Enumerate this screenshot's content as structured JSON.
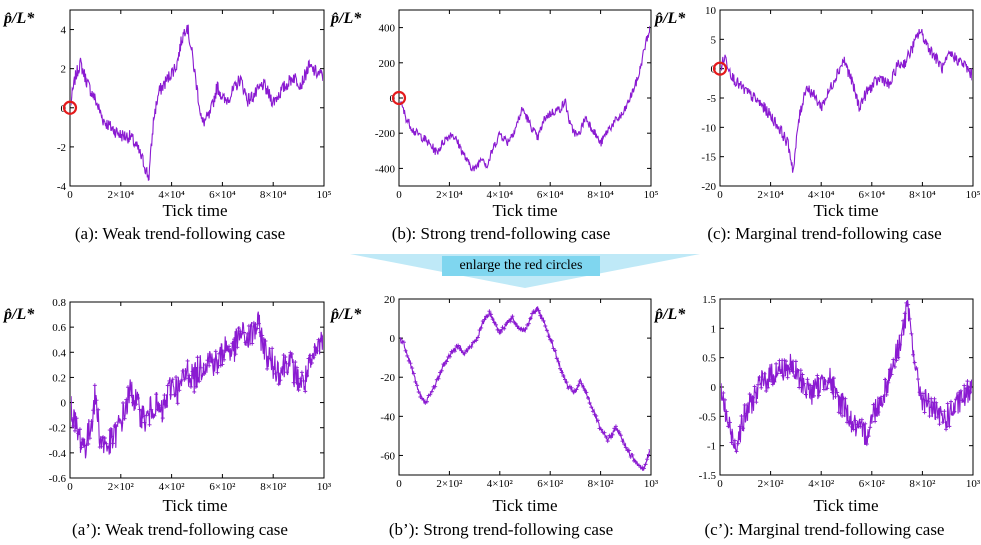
{
  "banner": {
    "text": "enlarge the red circles",
    "color": "#7fd6ef"
  },
  "series_color": "#8a1ad1",
  "marker_color": "#e31a1c",
  "chart_data": [
    {
      "id": "a",
      "type": "line",
      "caption": "(a): Weak trend-following case",
      "xlabel": "Tick time",
      "ylabel": "p̂/L*",
      "xlim": [
        0,
        100000
      ],
      "ylim": [
        -4,
        5
      ],
      "yticks": [
        -4,
        -2,
        0,
        2,
        4
      ],
      "xticks": [
        0,
        20000,
        40000,
        60000,
        80000,
        100000
      ],
      "xtick_labels": [
        "0",
        "2×10⁴",
        "4×10⁴",
        "6×10⁴",
        "8×10⁴",
        "10⁵"
      ],
      "series_points": [
        [
          0,
          0
        ],
        [
          2000,
          1.5
        ],
        [
          4000,
          2.3
        ],
        [
          7000,
          1.2
        ],
        [
          10000,
          0.4
        ],
        [
          13000,
          -0.6
        ],
        [
          16000,
          -1.0
        ],
        [
          20000,
          -1.4
        ],
        [
          24000,
          -1.5
        ],
        [
          27000,
          -2.2
        ],
        [
          29000,
          -2.8
        ],
        [
          31000,
          -3.6
        ],
        [
          33000,
          -0.5
        ],
        [
          35000,
          0.8
        ],
        [
          37000,
          1.2
        ],
        [
          39000,
          1.6
        ],
        [
          42000,
          2.2
        ],
        [
          44000,
          3.5
        ],
        [
          46000,
          4.3
        ],
        [
          48000,
          2.8
        ],
        [
          50000,
          1.0
        ],
        [
          52000,
          -0.8
        ],
        [
          55000,
          -0.4
        ],
        [
          58000,
          1.1
        ],
        [
          61000,
          0.3
        ],
        [
          64000,
          0.8
        ],
        [
          67000,
          1.5
        ],
        [
          70000,
          0.4
        ],
        [
          73000,
          0.7
        ],
        [
          76000,
          1.2
        ],
        [
          80000,
          0.3
        ],
        [
          84000,
          1.0
        ],
        [
          88000,
          1.6
        ],
        [
          91000,
          1.2
        ],
        [
          94000,
          2.1
        ],
        [
          97000,
          1.8
        ],
        [
          100000,
          1.6
        ]
      ],
      "noise_amplitude": 0.35,
      "marker": {
        "x": 0,
        "y": 0
      }
    },
    {
      "id": "b",
      "type": "line",
      "caption": "(b): Strong trend-following case",
      "xlabel": "Tick time",
      "ylabel": "p̂/L*",
      "xlim": [
        0,
        100000
      ],
      "ylim": [
        -500,
        500
      ],
      "yticks": [
        -400,
        -200,
        0,
        200,
        400
      ],
      "xticks": [
        0,
        20000,
        40000,
        60000,
        80000,
        100000
      ],
      "xtick_labels": [
        "0",
        "2×10⁴",
        "4×10⁴",
        "6×10⁴",
        "8×10⁴",
        "10⁵"
      ],
      "series_points": [
        [
          0,
          0
        ],
        [
          3000,
          -120
        ],
        [
          6000,
          -190
        ],
        [
          9000,
          -220
        ],
        [
          12000,
          -260
        ],
        [
          15000,
          -310
        ],
        [
          18000,
          -240
        ],
        [
          21000,
          -200
        ],
        [
          24000,
          -270
        ],
        [
          27000,
          -360
        ],
        [
          30000,
          -410
        ],
        [
          33000,
          -330
        ],
        [
          35000,
          -390
        ],
        [
          37000,
          -300
        ],
        [
          40000,
          -200
        ],
        [
          43000,
          -250
        ],
        [
          46000,
          -180
        ],
        [
          49000,
          -60
        ],
        [
          52000,
          -150
        ],
        [
          55000,
          -230
        ],
        [
          58000,
          -110
        ],
        [
          61000,
          -80
        ],
        [
          64000,
          -60
        ],
        [
          66000,
          -20
        ],
        [
          68000,
          -160
        ],
        [
          71000,
          -220
        ],
        [
          74000,
          -110
        ],
        [
          77000,
          -180
        ],
        [
          80000,
          -260
        ],
        [
          83000,
          -180
        ],
        [
          86000,
          -130
        ],
        [
          89000,
          -90
        ],
        [
          92000,
          10
        ],
        [
          95000,
          120
        ],
        [
          98000,
          320
        ],
        [
          100000,
          410
        ]
      ],
      "noise_amplitude": 25,
      "marker": {
        "x": 0,
        "y": 0
      }
    },
    {
      "id": "c",
      "type": "line",
      "caption": "(c): Marginal trend-following case",
      "xlabel": "Tick time",
      "ylabel": "p̂/L*",
      "xlim": [
        0,
        100000
      ],
      "ylim": [
        -20,
        10
      ],
      "yticks": [
        -20,
        -15,
        -10,
        -5,
        0,
        5,
        10
      ],
      "xticks": [
        0,
        20000,
        40000,
        60000,
        80000,
        100000
      ],
      "xtick_labels": [
        "0",
        "2×10⁴",
        "4×10⁴",
        "6×10⁴",
        "8×10⁴",
        "10⁵"
      ],
      "series_points": [
        [
          0,
          0
        ],
        [
          2000,
          2.0
        ],
        [
          5000,
          -1.5
        ],
        [
          8000,
          -3.0
        ],
        [
          12000,
          -4.5
        ],
        [
          16000,
          -6.0
        ],
        [
          20000,
          -8.0
        ],
        [
          24000,
          -10.5
        ],
        [
          27000,
          -13.0
        ],
        [
          29000,
          -17.5
        ],
        [
          31000,
          -9.0
        ],
        [
          34000,
          -3.0
        ],
        [
          37000,
          -4.5
        ],
        [
          40000,
          -6.5
        ],
        [
          43000,
          -4.0
        ],
        [
          46000,
          -1.0
        ],
        [
          49000,
          1.5
        ],
        [
          52000,
          -2.0
        ],
        [
          55000,
          -6.5
        ],
        [
          58000,
          -4.0
        ],
        [
          61000,
          -2.5
        ],
        [
          64000,
          -1.5
        ],
        [
          67000,
          -3.0
        ],
        [
          70000,
          0.5
        ],
        [
          73000,
          1.0
        ],
        [
          76000,
          3.5
        ],
        [
          79000,
          6.5
        ],
        [
          82000,
          4.0
        ],
        [
          85000,
          2.0
        ],
        [
          88000,
          0.0
        ],
        [
          91000,
          2.5
        ],
        [
          94000,
          1.5
        ],
        [
          97000,
          0.5
        ],
        [
          100000,
          -1.5
        ]
      ],
      "noise_amplitude": 1.0,
      "marker": {
        "x": 0,
        "y": 0
      }
    },
    {
      "id": "a2",
      "type": "line",
      "caption": "(a’): Weak trend-following case",
      "xlabel": "Tick time",
      "ylabel": "p̂/L*",
      "xlim": [
        0,
        1000
      ],
      "ylim": [
        -0.6,
        0.8
      ],
      "yticks": [
        -0.6,
        -0.4,
        -0.2,
        0,
        0.2,
        0.4,
        0.6,
        0.8
      ],
      "xticks": [
        0,
        200,
        400,
        600,
        800,
        1000
      ],
      "xtick_labels": [
        "0",
        "2×10²",
        "4×10²",
        "6×10²",
        "8×10²",
        "10³"
      ],
      "series_points": [
        [
          0,
          0
        ],
        [
          30,
          -0.25
        ],
        [
          60,
          -0.35
        ],
        [
          80,
          -0.2
        ],
        [
          100,
          0.05
        ],
        [
          120,
          -0.3
        ],
        [
          150,
          -0.35
        ],
        [
          180,
          -0.25
        ],
        [
          210,
          -0.1
        ],
        [
          240,
          0.1
        ],
        [
          270,
          -0.05
        ],
        [
          300,
          -0.15
        ],
        [
          330,
          0.0
        ],
        [
          360,
          -0.1
        ],
        [
          400,
          0.15
        ],
        [
          430,
          0.1
        ],
        [
          460,
          0.25
        ],
        [
          490,
          0.2
        ],
        [
          520,
          0.3
        ],
        [
          550,
          0.35
        ],
        [
          580,
          0.3
        ],
        [
          610,
          0.45
        ],
        [
          640,
          0.4
        ],
        [
          670,
          0.55
        ],
        [
          700,
          0.5
        ],
        [
          740,
          0.62
        ],
        [
          770,
          0.4
        ],
        [
          800,
          0.3
        ],
        [
          830,
          0.25
        ],
        [
          860,
          0.35
        ],
        [
          890,
          0.2
        ],
        [
          920,
          0.15
        ],
        [
          950,
          0.3
        ],
        [
          980,
          0.45
        ],
        [
          1000,
          0.55
        ]
      ],
      "noise_amplitude": 0.12,
      "markers_on_points": true
    },
    {
      "id": "b2",
      "type": "line",
      "caption": "(b’): Strong trend-following case",
      "xlabel": "Tick time",
      "ylabel": "p̂/L*",
      "xlim": [
        0,
        1000
      ],
      "ylim": [
        -70,
        20
      ],
      "yticks": [
        -60,
        -40,
        -20,
        0,
        20
      ],
      "xticks": [
        0,
        200,
        400,
        600,
        800,
        1000
      ],
      "xtick_labels": [
        "0",
        "2×10²",
        "4×10²",
        "6×10²",
        "8×10²",
        "10³"
      ],
      "series_points": [
        [
          0,
          0
        ],
        [
          20,
          -3
        ],
        [
          50,
          -15
        ],
        [
          80,
          -28
        ],
        [
          100,
          -33
        ],
        [
          120,
          -30
        ],
        [
          150,
          -22
        ],
        [
          180,
          -13
        ],
        [
          210,
          -7
        ],
        [
          240,
          -4
        ],
        [
          260,
          -8
        ],
        [
          280,
          -5
        ],
        [
          310,
          0
        ],
        [
          340,
          10
        ],
        [
          360,
          13
        ],
        [
          380,
          8
        ],
        [
          400,
          3
        ],
        [
          430,
          8
        ],
        [
          450,
          10
        ],
        [
          470,
          6
        ],
        [
          500,
          4
        ],
        [
          530,
          12
        ],
        [
          550,
          15
        ],
        [
          570,
          10
        ],
        [
          600,
          0
        ],
        [
          640,
          -15
        ],
        [
          670,
          -25
        ],
        [
          700,
          -28
        ],
        [
          720,
          -22
        ],
        [
          750,
          -30
        ],
        [
          780,
          -40
        ],
        [
          800,
          -47
        ],
        [
          830,
          -52
        ],
        [
          860,
          -46
        ],
        [
          880,
          -50
        ],
        [
          910,
          -58
        ],
        [
          940,
          -63
        ],
        [
          970,
          -67
        ],
        [
          990,
          -60
        ],
        [
          1000,
          -57
        ]
      ],
      "noise_amplitude": 1.2,
      "markers_on_points": true
    },
    {
      "id": "c2",
      "type": "line",
      "caption": "(c’): Marginal trend-following case",
      "xlabel": "Tick time",
      "ylabel": "p̂/L*",
      "xlim": [
        0,
        1000
      ],
      "ylim": [
        -1.5,
        1.5
      ],
      "yticks": [
        -1.5,
        -1,
        -0.5,
        0,
        0.5,
        1,
        1.5
      ],
      "xticks": [
        0,
        200,
        400,
        600,
        800,
        1000
      ],
      "xtick_labels": [
        "0",
        "2×10²",
        "4×10²",
        "6×10²",
        "8×10²",
        "10³"
      ],
      "series_points": [
        [
          0,
          0
        ],
        [
          30,
          -0.6
        ],
        [
          60,
          -1.0
        ],
        [
          90,
          -0.6
        ],
        [
          120,
          -0.3
        ],
        [
          160,
          0.05
        ],
        [
          200,
          0.2
        ],
        [
          240,
          0.3
        ],
        [
          280,
          0.35
        ],
        [
          320,
          0.1
        ],
        [
          360,
          -0.1
        ],
        [
          400,
          0.05
        ],
        [
          430,
          0.2
        ],
        [
          460,
          -0.2
        ],
        [
          490,
          -0.3
        ],
        [
          520,
          -0.6
        ],
        [
          550,
          -0.75
        ],
        [
          580,
          -0.8
        ],
        [
          610,
          -0.4
        ],
        [
          640,
          -0.2
        ],
        [
          670,
          0.2
        ],
        [
          700,
          0.6
        ],
        [
          720,
          0.9
        ],
        [
          740,
          1.35
        ],
        [
          760,
          0.8
        ],
        [
          780,
          0.1
        ],
        [
          800,
          -0.2
        ],
        [
          830,
          -0.3
        ],
        [
          860,
          -0.5
        ],
        [
          890,
          -0.55
        ],
        [
          920,
          -0.4
        ],
        [
          950,
          -0.25
        ],
        [
          980,
          -0.1
        ],
        [
          1000,
          0.15
        ]
      ],
      "noise_amplitude": 0.22,
      "markers_on_points": true
    }
  ]
}
